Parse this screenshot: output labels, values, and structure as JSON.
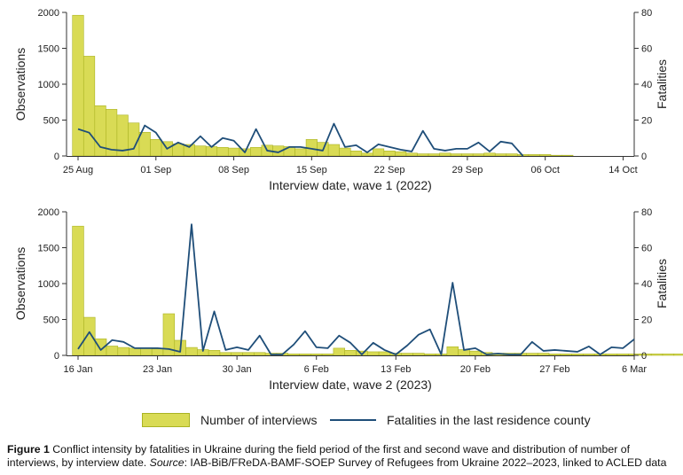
{
  "colors": {
    "bar_fill": "#d9db55",
    "bar_stroke": "#aab322",
    "line": "#1f4e79",
    "axis": "#333333"
  },
  "legend": {
    "bars": "Number of interviews",
    "line": "Fatalities in the last residence county"
  },
  "caption": {
    "label": "Figure 1",
    "text": " Conflict intensity by fatalities in Ukraine during the field period of the first and second wave and distribution of number of interviews, by interview date. ",
    "source_label": "Source",
    "source_text": ": IAB-BiB/FReDA-BAMF-SOEP Survey of Refugees from Ukraine 2022–2023, linked to ACLED data"
  },
  "chart_data": [
    {
      "type": "bar+line",
      "xlabel": "Interview date, wave 1 (2022)",
      "ylabel": "Observations",
      "ylabel_right": "Fatalities",
      "ylim": [
        0,
        2000
      ],
      "ylim_right": [
        0,
        80
      ],
      "yticks": [
        0,
        500,
        1000,
        1500,
        2000
      ],
      "yticks_right": [
        0,
        20,
        40,
        60,
        80
      ],
      "xticks": [
        "25 Aug",
        "01 Sep",
        "08 Sep",
        "15 Sep",
        "22 Sep",
        "29 Sep",
        "06 Oct",
        "14 Oct"
      ],
      "x_days": 50,
      "bars": [
        1960,
        1390,
        700,
        650,
        570,
        460,
        330,
        230,
        200,
        170,
        160,
        140,
        130,
        120,
        110,
        100,
        120,
        150,
        140,
        130,
        100,
        230,
        190,
        160,
        110,
        70,
        40,
        100,
        70,
        60,
        40,
        30,
        30,
        40,
        30,
        30,
        30,
        40,
        30,
        30,
        20,
        20,
        20,
        10,
        10
      ],
      "line": [
        15,
        13,
        5,
        3.5,
        3,
        4,
        17,
        13,
        4,
        7.5,
        5,
        11,
        5,
        10,
        8.5,
        2,
        15,
        3,
        2,
        5,
        5,
        4,
        3,
        18,
        5,
        6,
        2,
        6.5,
        5,
        3.5,
        2.5,
        14,
        4,
        3,
        4,
        4,
        7.5,
        2.5,
        8,
        7,
        0
      ]
    },
    {
      "type": "bar+line",
      "xlabel": "Interview date, wave 2 (2023)",
      "ylabel": "Observations",
      "ylabel_right": "Fatalities",
      "ylim": [
        0,
        2000
      ],
      "ylim_right": [
        0,
        80
      ],
      "yticks": [
        0,
        500,
        1000,
        1500,
        2000
      ],
      "yticks_right": [
        0,
        20,
        40,
        60,
        80
      ],
      "xticks": [
        "16 Jan",
        "23 Jan",
        "30 Jan",
        "6 Feb",
        "13 Feb",
        "20 Feb",
        "27 Feb",
        "6 Mar"
      ],
      "x_days": 49,
      "bars": [
        1800,
        530,
        230,
        130,
        110,
        100,
        100,
        90,
        580,
        210,
        110,
        80,
        70,
        40,
        40,
        40,
        40,
        30,
        30,
        20,
        20,
        20,
        20,
        100,
        70,
        60,
        50,
        50,
        30,
        30,
        30,
        20,
        20,
        120,
        80,
        60,
        40,
        30,
        30,
        30,
        30,
        30,
        20,
        20,
        20,
        20,
        20,
        20,
        20,
        20,
        20,
        20,
        20,
        20,
        30,
        30,
        20
      ],
      "line": [
        3.5,
        13,
        3,
        8.5,
        7.5,
        4,
        4,
        4,
        3.5,
        2,
        73,
        2.5,
        24.5,
        3,
        4.5,
        3,
        11,
        0.5,
        0.5,
        6,
        13.5,
        4.5,
        4,
        11,
        7,
        0.5,
        7,
        3,
        0.5,
        5.5,
        11.5,
        14.5,
        0.5,
        40.5,
        3,
        4,
        0.5,
        1,
        0.5,
        0.5,
        7.5,
        2.5,
        3,
        2.5,
        2,
        5,
        0.5,
        4.5,
        4,
        9
      ]
    }
  ]
}
